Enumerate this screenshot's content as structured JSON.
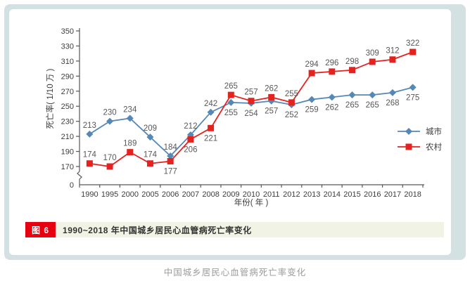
{
  "page": {
    "bottom_caption": "中国城乡居民心血管病死亡率变化"
  },
  "figure": {
    "badge": "图 6",
    "badge_color": "#e60012",
    "caption": "1990~2018 年中国城乡居民心血管病死亡率变化"
  },
  "chart_data": {
    "type": "line",
    "title": "",
    "xlabel": "年份( 年 )",
    "ylabel": "死亡率( 1/10 万 )",
    "categories": [
      "1990",
      "1995",
      "2000",
      "2005",
      "2006",
      "2007",
      "2008",
      "2009",
      "2010",
      "2011",
      "2012",
      "2013",
      "2014",
      "2015",
      "2016",
      "2017",
      "2018"
    ],
    "series": [
      {
        "name": "城市",
        "marker": "diamond",
        "color": "#5688b5",
        "values": [
          213,
          230,
          234,
          209,
          184,
          212,
          242,
          255,
          254,
          257,
          252,
          259,
          262,
          265,
          265,
          268,
          275
        ],
        "label_side": [
          "above",
          "above",
          "above",
          "above",
          "above",
          "above",
          "above",
          "below",
          "below",
          "below",
          "below",
          "below",
          "below",
          "below",
          "below",
          "below",
          "below"
        ]
      },
      {
        "name": "农村",
        "marker": "square",
        "color": "#e42320",
        "values": [
          174,
          170,
          189,
          174,
          177,
          206,
          221,
          265,
          257,
          262,
          255,
          294,
          296,
          298,
          309,
          312,
          322
        ],
        "label_side": [
          "above",
          "above",
          "above",
          "above",
          "below",
          "below",
          "below",
          "above",
          "above",
          "above",
          "above",
          "above",
          "above",
          "above",
          "above",
          "above",
          "above"
        ]
      }
    ],
    "y_ticks": [
      170,
      190,
      210,
      230,
      250,
      270,
      290,
      310,
      330,
      350
    ],
    "y_origin_label": "0",
    "y_axis_break": true,
    "ylim": [
      170,
      350
    ],
    "grid": false,
    "legend_position": "right-middle",
    "label_color": "#595757",
    "axis_color": "#58585a",
    "tick_text_color": "#3c3c3c"
  }
}
